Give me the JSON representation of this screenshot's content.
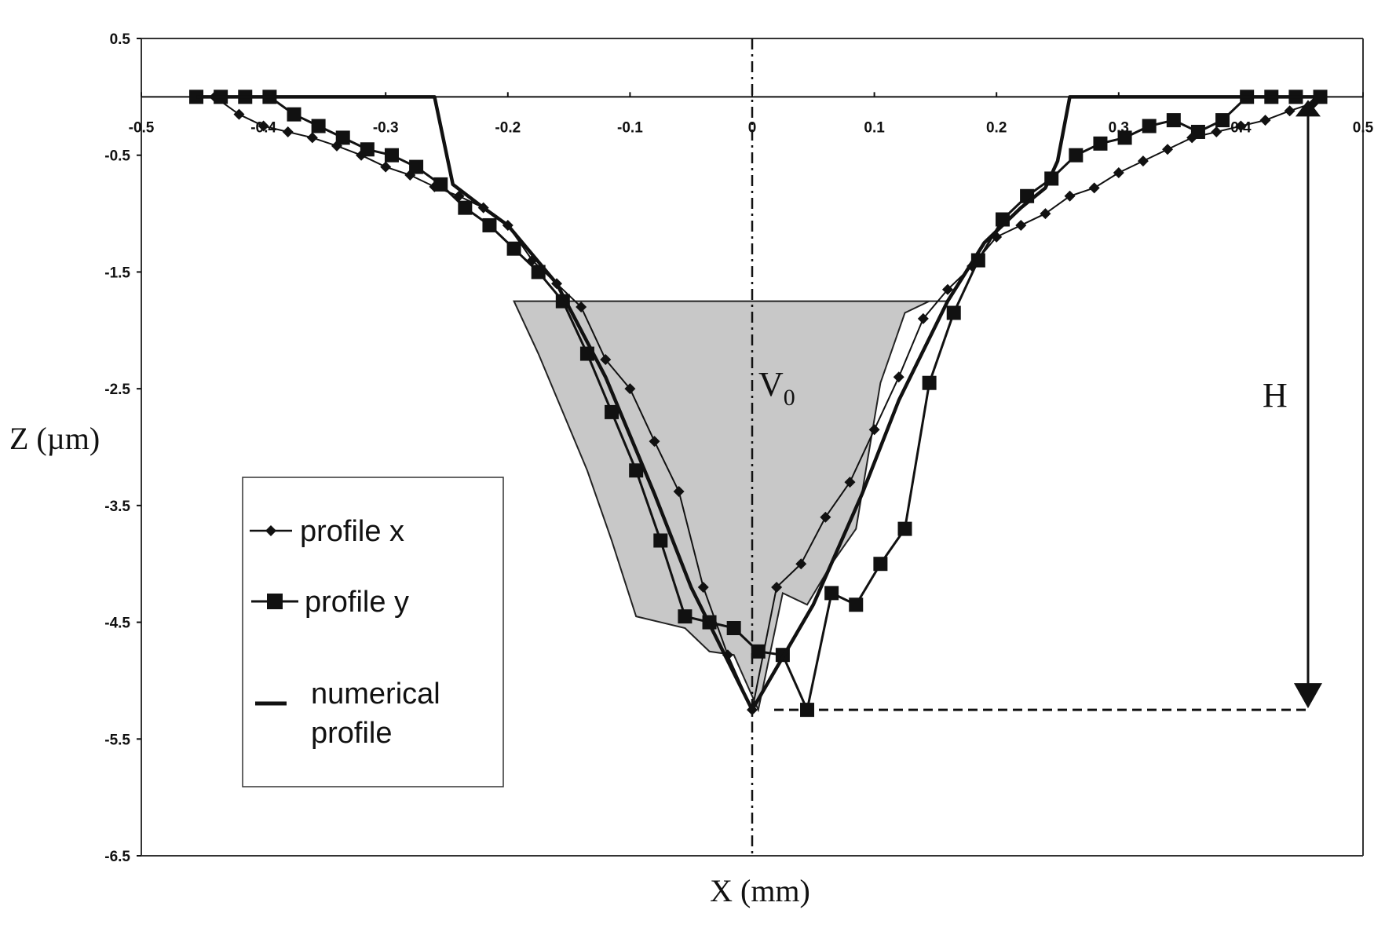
{
  "chart_data": {
    "type": "line",
    "xlabel": "X (mm)",
    "ylabel": "Z (µm)",
    "xlim": [
      -0.5,
      0.5
    ],
    "ylim": [
      -6.5,
      0.5
    ],
    "x_ticks": [
      -0.5,
      -0.4,
      -0.3,
      -0.2,
      -0.1,
      0,
      0.1,
      0.2,
      0.3,
      0.4,
      0.5
    ],
    "x_tick_labels": [
      "-0.5",
      "-0.4",
      "-0.3",
      "-0.2",
      "-0.1",
      "0",
      "0.1",
      "0.2",
      "0.3",
      "0.4",
      "0.5"
    ],
    "y_ticks": [
      0.5,
      -0.5,
      -1.5,
      -2.5,
      -3.5,
      -4.5,
      -5.5,
      -6.5
    ],
    "y_tick_labels": [
      "0.5",
      "-0.5",
      "-1.5",
      "-2.5",
      "-3.5",
      "-4.5",
      "-5.5",
      "-6.5"
    ],
    "grid": false,
    "legend_position": "lower-left",
    "series": [
      {
        "name": "profile x",
        "marker": "diamond",
        "x": [
          -0.455,
          -0.44,
          -0.42,
          -0.4,
          -0.38,
          -0.36,
          -0.34,
          -0.32,
          -0.3,
          -0.28,
          -0.26,
          -0.24,
          -0.22,
          -0.2,
          -0.18,
          -0.16,
          -0.14,
          -0.12,
          -0.1,
          -0.08,
          -0.06,
          -0.04,
          -0.02,
          0.0,
          0.02,
          0.04,
          0.06,
          0.08,
          0.1,
          0.12,
          0.14,
          0.16,
          0.18,
          0.2,
          0.22,
          0.24,
          0.26,
          0.28,
          0.3,
          0.32,
          0.34,
          0.36,
          0.38,
          0.4,
          0.42,
          0.44,
          0.46
        ],
        "y": [
          0.0,
          0.0,
          -0.15,
          -0.25,
          -0.3,
          -0.35,
          -0.42,
          -0.5,
          -0.6,
          -0.67,
          -0.77,
          -0.85,
          -0.95,
          -1.1,
          -1.4,
          -1.6,
          -1.8,
          -2.25,
          -2.5,
          -2.95,
          -3.38,
          -4.2,
          -4.78,
          -5.25,
          -4.2,
          -4.0,
          -3.6,
          -3.3,
          -2.85,
          -2.4,
          -1.9,
          -1.65,
          -1.45,
          -1.2,
          -1.1,
          -1.0,
          -0.85,
          -0.78,
          -0.65,
          -0.55,
          -0.45,
          -0.35,
          -0.3,
          -0.25,
          -0.2,
          -0.12,
          -0.05
        ]
      },
      {
        "name": "profile y",
        "marker": "square",
        "x": [
          -0.455,
          -0.435,
          -0.415,
          -0.395,
          -0.375,
          -0.355,
          -0.335,
          -0.315,
          -0.295,
          -0.275,
          -0.255,
          -0.235,
          -0.215,
          -0.195,
          -0.175,
          -0.155,
          -0.135,
          -0.115,
          -0.095,
          -0.075,
          -0.055,
          -0.035,
          -0.015,
          0.005,
          0.025,
          0.045,
          0.065,
          0.085,
          0.105,
          0.125,
          0.145,
          0.165,
          0.185,
          0.205,
          0.225,
          0.245,
          0.265,
          0.285,
          0.305,
          0.325,
          0.345,
          0.365,
          0.385,
          0.405,
          0.425,
          0.445,
          0.465
        ],
        "y": [
          0.0,
          0.0,
          0.0,
          0.0,
          -0.15,
          -0.25,
          -0.35,
          -0.45,
          -0.5,
          -0.6,
          -0.75,
          -0.95,
          -1.1,
          -1.3,
          -1.5,
          -1.75,
          -2.2,
          -2.7,
          -3.2,
          -3.8,
          -4.45,
          -4.5,
          -4.55,
          -4.75,
          -4.78,
          -5.25,
          -4.25,
          -4.35,
          -4.0,
          -3.7,
          -2.45,
          -1.85,
          -1.4,
          -1.05,
          -0.85,
          -0.7,
          -0.5,
          -0.4,
          -0.35,
          -0.25,
          -0.2,
          -0.3,
          -0.2,
          0.0,
          0.0,
          0.0,
          0.0
        ]
      },
      {
        "name": "numerical profile",
        "marker": "none",
        "x": [
          -0.455,
          -0.26,
          -0.245,
          -0.22,
          -0.2,
          -0.16,
          -0.12,
          -0.08,
          -0.05,
          0.0,
          0.05,
          0.09,
          0.12,
          0.16,
          0.19,
          0.22,
          0.24,
          0.25,
          0.26,
          0.3,
          0.46
        ],
        "y": [
          0.0,
          0.0,
          -0.75,
          -0.95,
          -1.1,
          -1.6,
          -2.4,
          -3.4,
          -4.2,
          -5.25,
          -4.35,
          -3.4,
          -2.6,
          -1.75,
          -1.25,
          -0.95,
          -0.78,
          -0.55,
          0.0,
          0.0,
          0.0
        ]
      }
    ],
    "annotations": [
      {
        "text": "V0",
        "base": "V",
        "sub": "0",
        "x": 0.0,
        "y": -2.6
      },
      {
        "text": "H",
        "x": 0.43,
        "y": -2.6
      }
    ],
    "shaded_region": {
      "color": "#c8c8c8",
      "x": [
        -0.195,
        -0.175,
        -0.155,
        -0.135,
        -0.115,
        -0.095,
        -0.075,
        -0.055,
        -0.035,
        -0.015,
        0.005,
        0.025,
        0.045,
        0.065,
        0.085,
        0.105,
        0.125,
        0.145,
        0.16
      ],
      "y": [
        -1.75,
        -2.2,
        -2.7,
        -3.2,
        -3.8,
        -4.45,
        -4.5,
        -4.55,
        -4.75,
        -4.78,
        -5.25,
        -4.25,
        -4.35,
        -4.0,
        -3.7,
        -2.45,
        -1.85,
        -1.75,
        -1.75
      ]
    },
    "depth_marker": {
      "x": 0.455,
      "y_top": 0.0,
      "y_bottom": -5.25,
      "label": "H"
    }
  }
}
